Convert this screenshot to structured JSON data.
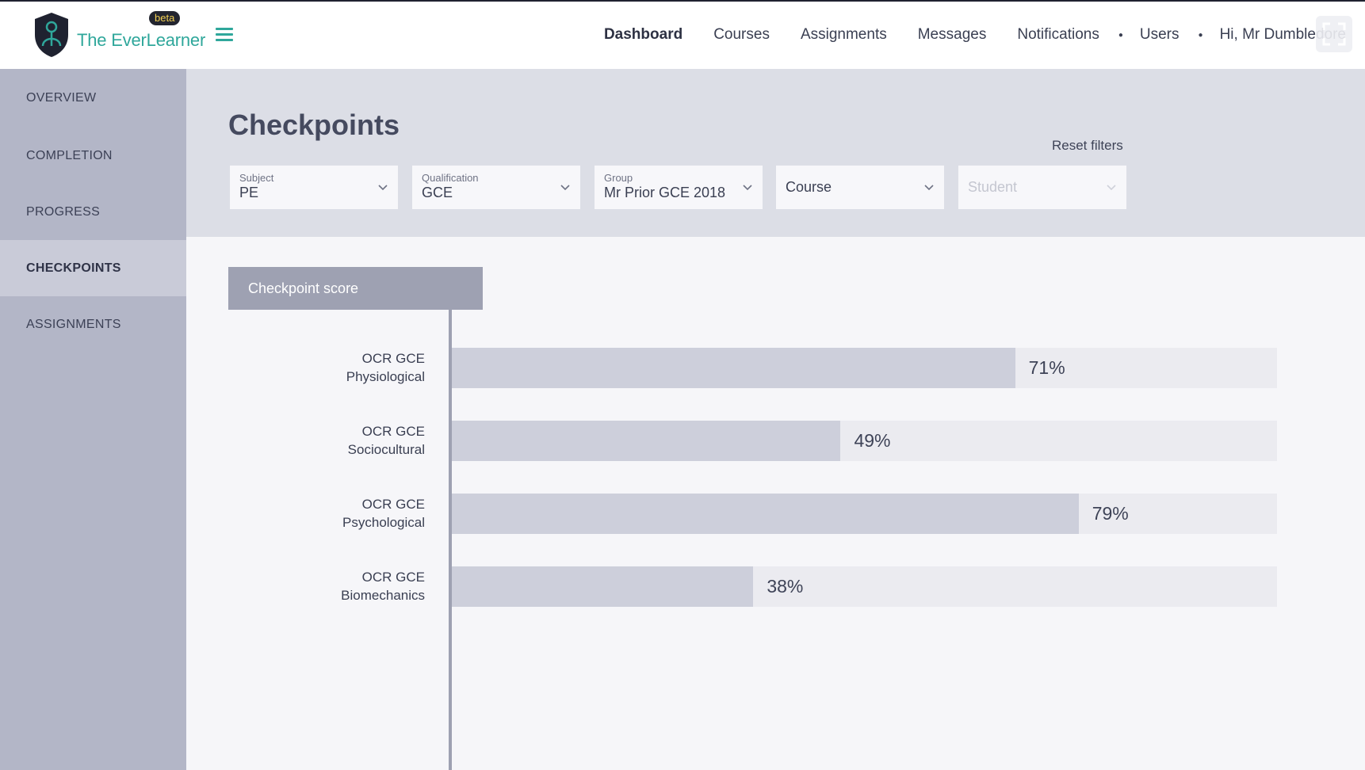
{
  "brand": {
    "name": "The EverLearner",
    "badge": "beta",
    "accent": "#2fa79b"
  },
  "nav": {
    "items": [
      {
        "label": "Dashboard",
        "active": true
      },
      {
        "label": "Courses"
      },
      {
        "label": "Assignments"
      },
      {
        "label": "Messages"
      },
      {
        "label": "Notifications"
      }
    ],
    "users": "Users",
    "greeting": "Hi, Mr Dumbledore"
  },
  "sidebar": {
    "items": [
      {
        "label": "OVERVIEW"
      },
      {
        "label": "COMPLETION"
      },
      {
        "label": "PROGRESS"
      },
      {
        "label": "CHECKPOINTS",
        "active": true
      },
      {
        "label": "ASSIGNMENTS"
      }
    ]
  },
  "page": {
    "title": "Checkpoints",
    "reset_filters": "Reset filters"
  },
  "filters": {
    "subject": {
      "label": "Subject",
      "value": "PE"
    },
    "qualification": {
      "label": "Qualification",
      "value": "GCE"
    },
    "group": {
      "label": "Group",
      "value": "Mr Prior GCE 2018"
    },
    "course": {
      "placeholder": "Course"
    },
    "student": {
      "placeholder": "Student"
    }
  },
  "chart_data": {
    "type": "bar",
    "orientation": "horizontal",
    "title": "Checkpoint score",
    "categories": [
      [
        "OCR GCE",
        "Physiological"
      ],
      [
        "OCR GCE",
        "Sociocultural"
      ],
      [
        "OCR GCE",
        "Psychological"
      ],
      [
        "OCR GCE",
        "Biomechanics"
      ]
    ],
    "values": [
      71,
      49,
      79,
      38
    ],
    "value_labels": [
      "71%",
      "49%",
      "79%",
      "38%"
    ],
    "xlim": [
      0,
      100
    ],
    "grid": false
  }
}
